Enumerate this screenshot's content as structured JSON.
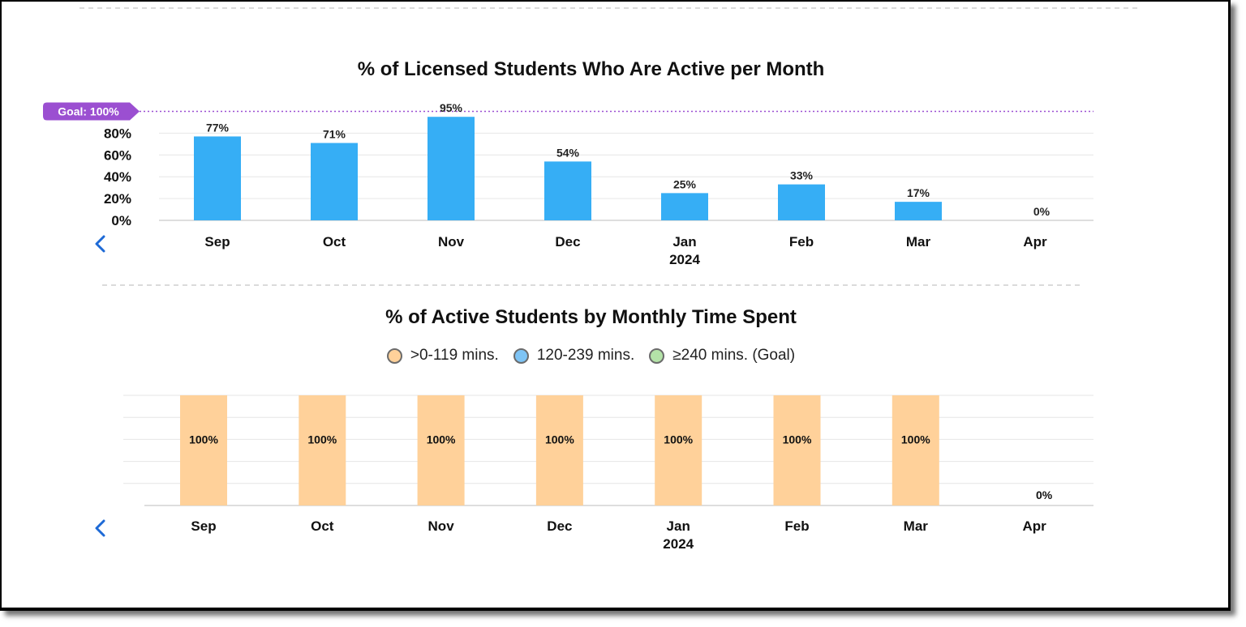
{
  "chart_data": [
    {
      "type": "bar",
      "title": "% of Licensed Students Who Are Active per Month",
      "categories": [
        "Sep",
        "Oct",
        "Nov",
        "Dec",
        "Jan",
        "Feb",
        "Mar",
        "Apr"
      ],
      "year_label": {
        "category": "Jan",
        "text": "2024"
      },
      "values": [
        77,
        71,
        95,
        54,
        25,
        33,
        17,
        0
      ],
      "data_labels": [
        "77%",
        "71%",
        "95%",
        "54%",
        "25%",
        "33%",
        "17%",
        "0%"
      ],
      "yticks": [
        0,
        20,
        40,
        60,
        80
      ],
      "ytick_labels": [
        "0%",
        "20%",
        "40%",
        "60%",
        "80%"
      ],
      "ylim": [
        0,
        100
      ],
      "goal": {
        "value": 100,
        "label": "Goal: 100%",
        "color": "#9b4fd1"
      },
      "bar_color": "#36aef5",
      "grid": true
    },
    {
      "type": "bar",
      "stacked": true,
      "title": "% of Active Students by Monthly Time Spent",
      "categories": [
        "Sep",
        "Oct",
        "Nov",
        "Dec",
        "Jan",
        "Feb",
        "Mar",
        "Apr"
      ],
      "year_label": {
        "category": "Jan",
        "text": "2024"
      },
      "ylim": [
        0,
        100
      ],
      "grid": true,
      "legend_position": "top-center",
      "series": [
        {
          "name": ">0-119 mins.",
          "color": "#ffd19a",
          "values": [
            100,
            100,
            100,
            100,
            100,
            100,
            100,
            0
          ],
          "data_labels": [
            "100%",
            "100%",
            "100%",
            "100%",
            "100%",
            "100%",
            "100%",
            "0%"
          ]
        },
        {
          "name": "120-239 mins.",
          "color": "#7ec4f5",
          "values": [
            0,
            0,
            0,
            0,
            0,
            0,
            0,
            0
          ]
        },
        {
          "name": "≥240 mins. (Goal)",
          "color": "#b4e3a8",
          "values": [
            0,
            0,
            0,
            0,
            0,
            0,
            0,
            0
          ]
        }
      ]
    }
  ],
  "nav": {
    "prev_icon": "chevron-left-icon",
    "color": "#1e6ad6"
  }
}
